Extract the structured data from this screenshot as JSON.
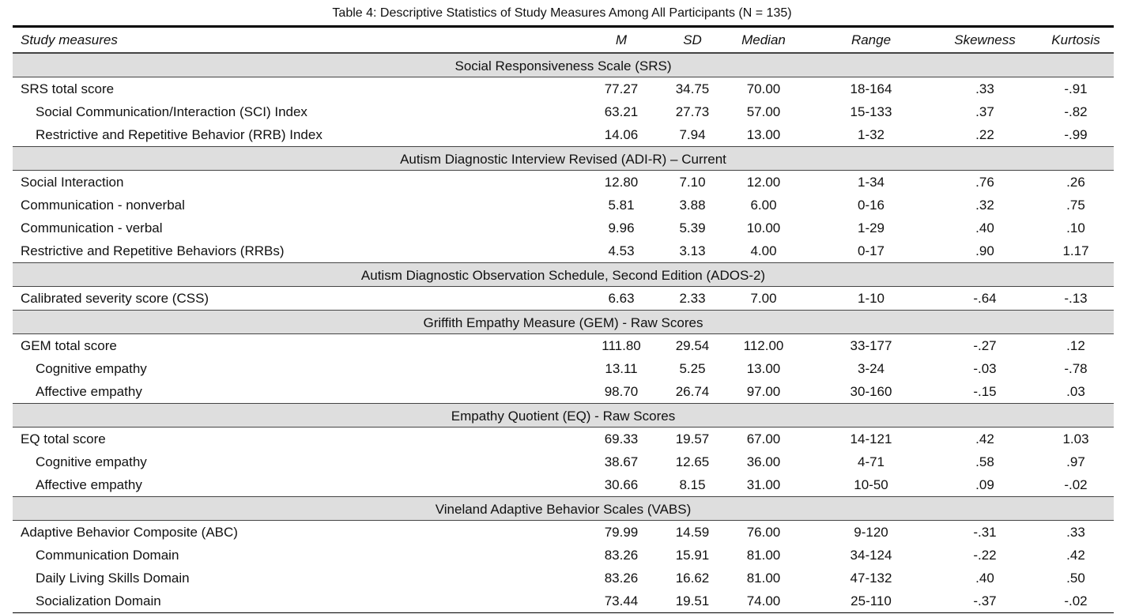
{
  "caption": "Table 4: Descriptive Statistics of Study Measures Among All Participants (N = 135)",
  "headers": {
    "measure": "Study measures",
    "m": "M",
    "sd": "SD",
    "median": "Median",
    "range": "Range",
    "skewness": "Skewness",
    "kurtosis": "Kurtosis"
  },
  "sections": [
    {
      "title": "Social Responsiveness Scale (SRS)",
      "rows": [
        {
          "name": "SRS total score",
          "indent": false,
          "m": "77.27",
          "sd": "34.75",
          "median": "70.00",
          "range": "18-164",
          "skewness": ".33",
          "kurtosis": "-.91"
        },
        {
          "name": "Social Communication/Interaction (SCI) Index",
          "indent": true,
          "m": "63.21",
          "sd": "27.73",
          "median": "57.00",
          "range": "15-133",
          "skewness": ".37",
          "kurtosis": "-.82"
        },
        {
          "name": "Restrictive and Repetitive Behavior (RRB) Index",
          "indent": true,
          "m": "14.06",
          "sd": "7.94",
          "median": "13.00",
          "range": "1-32",
          "skewness": ".22",
          "kurtosis": "-.99"
        }
      ]
    },
    {
      "title": "Autism Diagnostic Interview Revised (ADI-R) – Current",
      "rows": [
        {
          "name": "Social Interaction",
          "indent": false,
          "m": "12.80",
          "sd": "7.10",
          "median": "12.00",
          "range": "1-34",
          "skewness": ".76",
          "kurtosis": ".26"
        },
        {
          "name": "Communication - nonverbal",
          "indent": false,
          "m": "5.81",
          "sd": "3.88",
          "median": "6.00",
          "range": "0-16",
          "skewness": ".32",
          "kurtosis": ".75"
        },
        {
          "name": "Communication - verbal",
          "indent": false,
          "m": "9.96",
          "sd": "5.39",
          "median": "10.00",
          "range": "1-29",
          "skewness": ".40",
          "kurtosis": ".10"
        },
        {
          "name": "Restrictive and Repetitive Behaviors (RRBs)",
          "indent": false,
          "m": "4.53",
          "sd": "3.13",
          "median": "4.00",
          "range": "0-17",
          "skewness": ".90",
          "kurtosis": "1.17"
        }
      ]
    },
    {
      "title": "Autism Diagnostic Observation Schedule, Second Edition (ADOS-2)",
      "rows": [
        {
          "name": "Calibrated severity score (CSS)",
          "indent": false,
          "m": "6.63",
          "sd": "2.33",
          "median": "7.00",
          "range": "1-10",
          "skewness": "-.64",
          "kurtosis": "-.13"
        }
      ]
    },
    {
      "title": "Griffith Empathy Measure (GEM) - Raw Scores",
      "rows": [
        {
          "name": "GEM total score",
          "indent": false,
          "m": "111.80",
          "sd": "29.54",
          "median": "112.00",
          "range": "33-177",
          "skewness": "-.27",
          "kurtosis": ".12"
        },
        {
          "name": "Cognitive empathy",
          "indent": true,
          "m": "13.11",
          "sd": "5.25",
          "median": "13.00",
          "range": "3-24",
          "skewness": "-.03",
          "kurtosis": "-.78"
        },
        {
          "name": "Affective empathy",
          "indent": true,
          "m": "98.70",
          "sd": "26.74",
          "median": "97.00",
          "range": "30-160",
          "skewness": "-.15",
          "kurtosis": ".03"
        }
      ]
    },
    {
      "title": "Empathy Quotient (EQ) - Raw Scores",
      "rows": [
        {
          "name": "EQ total score",
          "indent": false,
          "m": "69.33",
          "sd": "19.57",
          "median": "67.00",
          "range": "14-121",
          "skewness": ".42",
          "kurtosis": "1.03"
        },
        {
          "name": "Cognitive empathy",
          "indent": true,
          "m": "38.67",
          "sd": "12.65",
          "median": "36.00",
          "range": "4-71",
          "skewness": ".58",
          "kurtosis": ".97"
        },
        {
          "name": "Affective empathy",
          "indent": true,
          "m": "30.66",
          "sd": "8.15",
          "median": "31.00",
          "range": "10-50",
          "skewness": ".09",
          "kurtosis": "-.02"
        }
      ]
    },
    {
      "title": "Vineland Adaptive Behavior Scales (VABS)",
      "rows": [
        {
          "name": "Adaptive Behavior Composite (ABC)",
          "indent": false,
          "m": "79.99",
          "sd": "14.59",
          "median": "76.00",
          "range": "9-120",
          "skewness": "-.31",
          "kurtosis": ".33"
        },
        {
          "name": "Communication Domain",
          "indent": true,
          "m": "83.26",
          "sd": "15.91",
          "median": "81.00",
          "range": "34-124",
          "skewness": "-.22",
          "kurtosis": ".42"
        },
        {
          "name": "Daily Living Skills Domain",
          "indent": true,
          "m": "83.26",
          "sd": "16.62",
          "median": "81.00",
          "range": "47-132",
          "skewness": ".40",
          "kurtosis": ".50"
        },
        {
          "name": "Socialization Domain",
          "indent": true,
          "m": "73.44",
          "sd": "19.51",
          "median": "74.00",
          "range": "25-110",
          "skewness": "-.37",
          "kurtosis": "-.02"
        }
      ]
    }
  ]
}
